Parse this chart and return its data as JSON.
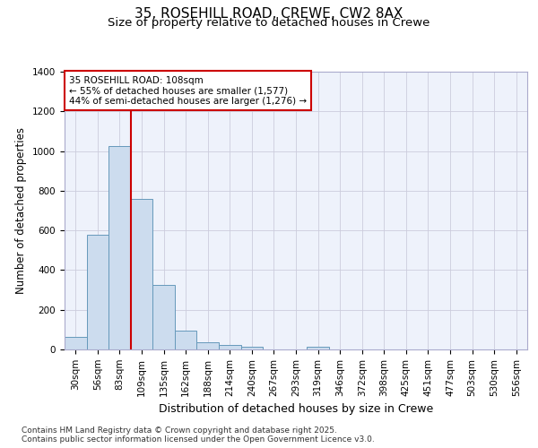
{
  "title1": "35, ROSEHILL ROAD, CREWE, CW2 8AX",
  "title2": "Size of property relative to detached houses in Crewe",
  "xlabel": "Distribution of detached houses by size in Crewe",
  "ylabel": "Number of detached properties",
  "categories": [
    "30sqm",
    "56sqm",
    "83sqm",
    "109sqm",
    "135sqm",
    "162sqm",
    "188sqm",
    "214sqm",
    "240sqm",
    "267sqm",
    "293sqm",
    "319sqm",
    "346sqm",
    "372sqm",
    "398sqm",
    "425sqm",
    "451sqm",
    "477sqm",
    "503sqm",
    "530sqm",
    "556sqm"
  ],
  "values": [
    65,
    578,
    1025,
    760,
    325,
    93,
    38,
    22,
    13,
    0,
    0,
    14,
    0,
    0,
    0,
    0,
    0,
    0,
    0,
    0,
    0
  ],
  "bar_color": "#ccdcee",
  "bar_edge_color": "#6699bb",
  "vline_color": "#cc0000",
  "vline_x_index": 2.5,
  "annotation_text": "35 ROSEHILL ROAD: 108sqm\n← 55% of detached houses are smaller (1,577)\n44% of semi-detached houses are larger (1,276) →",
  "annotation_box_edgecolor": "#cc0000",
  "background_color": "#eef2fb",
  "ylim": [
    0,
    1400
  ],
  "yticks": [
    0,
    200,
    400,
    600,
    800,
    1000,
    1200,
    1400
  ],
  "footer_text": "Contains HM Land Registry data © Crown copyright and database right 2025.\nContains public sector information licensed under the Open Government Licence v3.0.",
  "title_fontsize": 11,
  "subtitle_fontsize": 9.5,
  "tick_fontsize": 7.5,
  "ylabel_fontsize": 8.5,
  "xlabel_fontsize": 9,
  "annotation_fontsize": 7.5,
  "footer_fontsize": 6.5
}
